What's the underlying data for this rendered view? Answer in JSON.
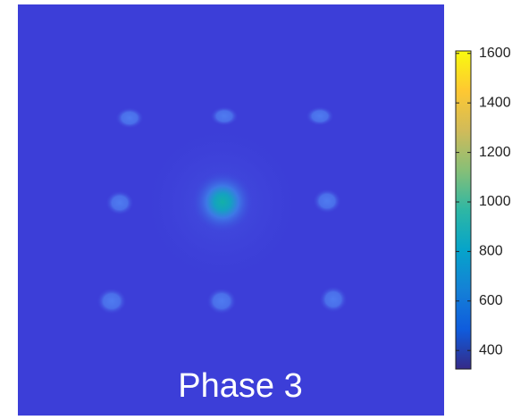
{
  "chart_data": {
    "type": "image",
    "caption": "Phase 3",
    "colormap": "parula",
    "clim": [
      325,
      1610
    ],
    "cticks": [
      400,
      600,
      800,
      1000,
      1200,
      1400,
      1600
    ]
  }
}
